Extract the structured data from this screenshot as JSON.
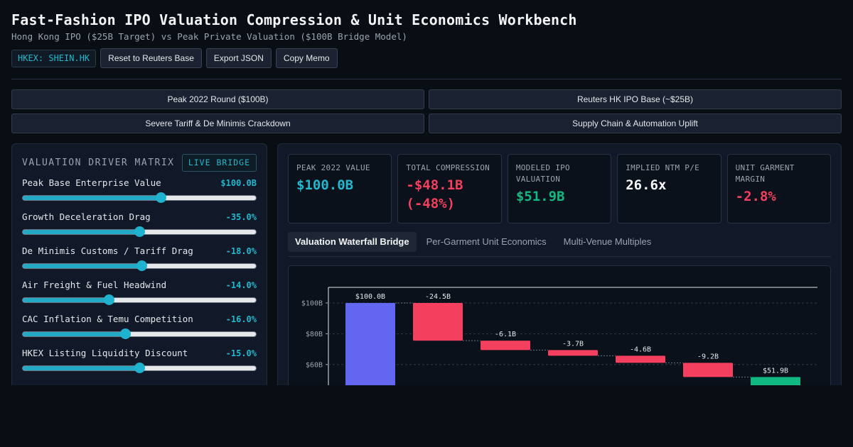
{
  "header": {
    "title": "Fast-Fashion IPO Valuation Compression & Unit Economics Workbench",
    "subtitle": "Hong Kong IPO ($25B Target) vs Peak Private Valuation ($100B Bridge Model)",
    "ticker": "HKEX: SHEIN.HK",
    "buttons": [
      "Reset to Reuters Base",
      "Export JSON",
      "Copy Memo"
    ]
  },
  "scenarios": [
    {
      "label": "Peak 2022 Round ($100B)",
      "active": false
    },
    {
      "label": "Reuters HK IPO Base (~$25B)",
      "active": true
    },
    {
      "label": "Severe Tariff & De Minimis Crackdown",
      "active": false
    },
    {
      "label": "Supply Chain & Automation Uplift",
      "active": false
    }
  ],
  "driver_panel": {
    "title": "VALUATION DRIVER MATRIX",
    "badge": "LIVE BRIDGE",
    "drivers": [
      {
        "label": "Peak Base Enterprise Value",
        "value": "$100.0B",
        "level": 0.59
      },
      {
        "label": "Growth Deceleration Drag",
        "value": "-35.0%",
        "level": 0.5
      },
      {
        "label": "De Minimis Customs / Tariff Drag",
        "value": "-18.0%",
        "level": 0.51
      },
      {
        "label": "Air Freight & Fuel Headwind",
        "value": "-14.0%",
        "level": 0.37
      },
      {
        "label": "CAC Inflation & Temu Competition",
        "value": "-16.0%",
        "level": 0.44
      },
      {
        "label": "HKEX Listing Liquidity Discount",
        "value": "-15.0%",
        "level": 0.5
      }
    ]
  },
  "kpis": [
    {
      "label": "PEAK 2022 VALUE",
      "value": "$100.0B",
      "color": "#22b8cf"
    },
    {
      "label": "TOTAL COMPRESSION",
      "value": "-$48.1B (-48%)",
      "color": "#f43f5e"
    },
    {
      "label": "MODELED IPO VALUATION",
      "value": "$51.9B",
      "color": "#10b981"
    },
    {
      "label": "IMPLIED NTM P/E",
      "value": "26.6x",
      "color": "#f9fafb"
    },
    {
      "label": "UNIT GARMENT MARGIN",
      "value": "-2.8%",
      "color": "#f43f5e"
    }
  ],
  "tabs": [
    {
      "label": "Valuation Waterfall Bridge",
      "active": true
    },
    {
      "label": "Per-Garment Unit Economics",
      "active": false
    },
    {
      "label": "Multi-Venue Multiples",
      "active": false
    }
  ],
  "chart_data": {
    "type": "bar",
    "subtype": "waterfall",
    "title": "",
    "xlabel": "",
    "ylabel": "",
    "y_tick_labels": [
      "$100B",
      "$80B",
      "$60B"
    ],
    "ylim": [
      0,
      107
    ],
    "grid": true,
    "steps": [
      {
        "label": "$100.0B",
        "start": 0,
        "end": 100.0,
        "kind": "total",
        "color": "#6366f1"
      },
      {
        "label": "-24.5B",
        "start": 100.0,
        "end": 75.5,
        "kind": "delta",
        "color": "#f43f5e"
      },
      {
        "label": "-6.1B",
        "start": 75.5,
        "end": 69.4,
        "kind": "delta",
        "color": "#f43f5e"
      },
      {
        "label": "-3.7B",
        "start": 69.4,
        "end": 65.7,
        "kind": "delta",
        "color": "#f43f5e"
      },
      {
        "label": "-4.6B",
        "start": 65.7,
        "end": 61.1,
        "kind": "delta",
        "color": "#f43f5e"
      },
      {
        "label": "-9.2B",
        "start": 61.1,
        "end": 51.9,
        "kind": "delta",
        "color": "#f43f5e"
      },
      {
        "label": "$51.9B",
        "start": 0,
        "end": 51.9,
        "kind": "total",
        "color": "#10b981"
      }
    ]
  }
}
